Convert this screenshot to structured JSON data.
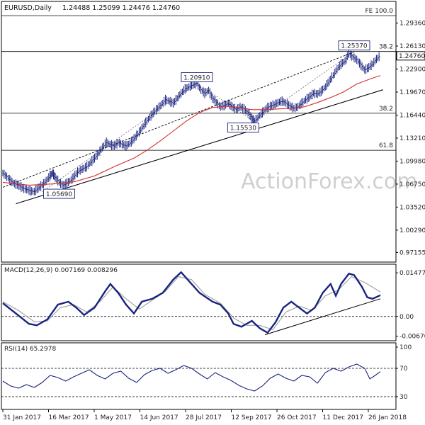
{
  "chart_data": {
    "type": "line",
    "header": {
      "symbol": "EURUSD,Daily",
      "ohlc": "1.24488 1.25099 1.24476 1.24760"
    },
    "watermark": "ActionForex.com",
    "x_tick_labels": [
      "31 Jan 2017",
      "16 Mar 2017",
      "1 May 2017",
      "14 Jun 2017",
      "28 Jul 2017",
      "12 Sep 2017",
      "26 Oct 2017",
      "11 Dec 2017",
      "26 Jan 2018"
    ],
    "price_panel": {
      "ylim": [
        0.96,
        1.322
      ],
      "y_tick_labels": [
        "1.29360",
        "1.26130",
        "1.22900",
        "1.19670",
        "1.16440",
        "1.13210",
        "1.09980",
        "1.06750",
        "1.03520",
        "1.00290",
        "0.97155"
      ],
      "last_price_label": "1.24760",
      "last_price": 1.2476,
      "price_series": [
        [
          0,
          1.083
        ],
        [
          3,
          1.078
        ],
        [
          6,
          1.072
        ],
        [
          9,
          1.068
        ],
        [
          12,
          1.066
        ],
        [
          15,
          1.062
        ],
        [
          18,
          1.06
        ],
        [
          21,
          1.058
        ],
        [
          24,
          1.057
        ],
        [
          27,
          1.062
        ],
        [
          30,
          1.066
        ],
        [
          33,
          1.072
        ],
        [
          36,
          1.079
        ],
        [
          38,
          1.083
        ],
        [
          40,
          1.077
        ],
        [
          43,
          1.07
        ],
        [
          46,
          1.066
        ],
        [
          49,
          1.069
        ],
        [
          52,
          1.073
        ],
        [
          55,
          1.08
        ],
        [
          58,
          1.086
        ],
        [
          61,
          1.089
        ],
        [
          64,
          1.092
        ],
        [
          67,
          1.098
        ],
        [
          70,
          1.104
        ],
        [
          73,
          1.111
        ],
        [
          76,
          1.119
        ],
        [
          79,
          1.126
        ],
        [
          82,
          1.123
        ],
        [
          85,
          1.121
        ],
        [
          88,
          1.126
        ],
        [
          91,
          1.123
        ],
        [
          94,
          1.121
        ],
        [
          97,
          1.125
        ],
        [
          100,
          1.131
        ],
        [
          103,
          1.138
        ],
        [
          106,
          1.146
        ],
        [
          109,
          1.154
        ],
        [
          112,
          1.161
        ],
        [
          115,
          1.168
        ],
        [
          118,
          1.174
        ],
        [
          121,
          1.179
        ],
        [
          124,
          1.186
        ],
        [
          127,
          1.184
        ],
        [
          130,
          1.181
        ],
        [
          133,
          1.188
        ],
        [
          136,
          1.195
        ],
        [
          139,
          1.201
        ],
        [
          142,
          1.204
        ],
        [
          145,
          1.207
        ],
        [
          148,
          1.209
        ],
        [
          151,
          1.2
        ],
        [
          154,
          1.195
        ],
        [
          157,
          1.199
        ],
        [
          160,
          1.188
        ],
        [
          163,
          1.182
        ],
        [
          166,
          1.176
        ],
        [
          169,
          1.178
        ],
        [
          172,
          1.181
        ],
        [
          175,
          1.176
        ],
        [
          178,
          1.172
        ],
        [
          181,
          1.176
        ],
        [
          184,
          1.173
        ],
        [
          187,
          1.168
        ],
        [
          190,
          1.16
        ],
        [
          192,
          1.156
        ],
        [
          195,
          1.162
        ],
        [
          198,
          1.168
        ],
        [
          201,
          1.174
        ],
        [
          204,
          1.177
        ],
        [
          207,
          1.179
        ],
        [
          210,
          1.182
        ],
        [
          213,
          1.184
        ],
        [
          216,
          1.181
        ],
        [
          219,
          1.177
        ],
        [
          222,
          1.174
        ],
        [
          225,
          1.176
        ],
        [
          228,
          1.181
        ],
        [
          231,
          1.186
        ],
        [
          234,
          1.19
        ],
        [
          237,
          1.195
        ],
        [
          240,
          1.194
        ],
        [
          243,
          1.198
        ],
        [
          246,
          1.204
        ],
        [
          249,
          1.212
        ],
        [
          252,
          1.22
        ],
        [
          255,
          1.229
        ],
        [
          258,
          1.236
        ],
        [
          261,
          1.24
        ],
        [
          264,
          1.251
        ],
        [
          267,
          1.246
        ],
        [
          270,
          1.242
        ],
        [
          273,
          1.235
        ],
        [
          276,
          1.228
        ],
        [
          279,
          1.231
        ],
        [
          282,
          1.236
        ],
        [
          285,
          1.243
        ],
        [
          288,
          1.248
        ]
      ],
      "sma_series": [
        [
          0,
          1.07
        ],
        [
          20,
          1.066
        ],
        [
          40,
          1.068
        ],
        [
          55,
          1.071
        ],
        [
          70,
          1.079
        ],
        [
          85,
          1.092
        ],
        [
          100,
          1.104
        ],
        [
          110,
          1.115
        ],
        [
          120,
          1.128
        ],
        [
          130,
          1.142
        ],
        [
          140,
          1.156
        ],
        [
          150,
          1.168
        ],
        [
          160,
          1.175
        ],
        [
          170,
          1.177
        ],
        [
          180,
          1.175
        ],
        [
          190,
          1.172
        ],
        [
          200,
          1.172
        ],
        [
          210,
          1.173
        ],
        [
          220,
          1.174
        ],
        [
          230,
          1.176
        ],
        [
          240,
          1.182
        ],
        [
          250,
          1.189
        ],
        [
          260,
          1.197
        ],
        [
          270,
          1.208
        ],
        [
          280,
          1.215
        ],
        [
          288,
          1.22
        ]
      ],
      "channel_lower": [
        [
          10,
          1.04
        ],
        [
          290,
          1.2
        ]
      ],
      "channel_upper_dashed": [
        [
          0,
          1.063
        ],
        [
          268,
          1.253
        ]
      ],
      "zigzag": [
        [
          30,
          1.0569
        ],
        [
          148,
          1.2091
        ],
        [
          192,
          1.1553
        ],
        [
          268,
          1.2537
        ]
      ],
      "horizontal_levels": [
        {
          "price": 1.304,
          "label": "FE 100.0"
        },
        {
          "price": 1.2537,
          "label": "38.2"
        },
        {
          "price": 1.167,
          "label": "38.2"
        },
        {
          "price": 1.115,
          "label": "61.8"
        }
      ],
      "annotations": [
        {
          "text": "1.05690",
          "x": 30,
          "price": 1.0569
        },
        {
          "text": "1.20910",
          "x": 148,
          "price": 1.2091
        },
        {
          "text": "1.15530",
          "x": 192,
          "price": 1.1553
        },
        {
          "text": "1.25370",
          "x": 268,
          "price": 1.2537
        }
      ]
    },
    "macd_panel": {
      "title": "MACD(12,26,9) 0.007169 0.008296",
      "ylim": [
        -0.0075,
        0.0165
      ],
      "y_tick_labels": [
        "0.014776",
        "0.00",
        "-0.006705"
      ],
      "macd_series": [
        [
          0,
          0.0045
        ],
        [
          10,
          0.001
        ],
        [
          20,
          -0.0025
        ],
        [
          26,
          -0.003
        ],
        [
          34,
          -0.001
        ],
        [
          42,
          0.004
        ],
        [
          50,
          0.005
        ],
        [
          56,
          0.003
        ],
        [
          62,
          0.0005
        ],
        [
          70,
          0.003
        ],
        [
          78,
          0.0085
        ],
        [
          82,
          0.011
        ],
        [
          88,
          0.008
        ],
        [
          94,
          0.004
        ],
        [
          100,
          0.001
        ],
        [
          106,
          0.005
        ],
        [
          114,
          0.006
        ],
        [
          122,
          0.008
        ],
        [
          130,
          0.0125
        ],
        [
          136,
          0.015
        ],
        [
          142,
          0.012
        ],
        [
          150,
          0.008
        ],
        [
          160,
          0.005
        ],
        [
          166,
          0.004
        ],
        [
          172,
          0.001
        ],
        [
          176,
          -0.0025
        ],
        [
          182,
          -0.0035
        ],
        [
          190,
          -0.0015
        ],
        [
          196,
          -0.004
        ],
        [
          202,
          -0.0055
        ],
        [
          208,
          -0.002
        ],
        [
          214,
          0.003
        ],
        [
          220,
          0.005
        ],
        [
          226,
          0.003
        ],
        [
          232,
          0.001
        ],
        [
          238,
          0.003
        ],
        [
          244,
          0.008
        ],
        [
          250,
          0.011
        ],
        [
          254,
          0.007
        ],
        [
          258,
          0.011
        ],
        [
          264,
          0.0145
        ],
        [
          268,
          0.014
        ],
        [
          274,
          0.01
        ],
        [
          278,
          0.0065
        ],
        [
          282,
          0.006
        ],
        [
          288,
          0.0072
        ]
      ],
      "signal_series": [
        [
          0,
          0.005
        ],
        [
          12,
          0.002
        ],
        [
          24,
          -0.0018
        ],
        [
          34,
          -0.0015
        ],
        [
          44,
          0.003
        ],
        [
          54,
          0.004
        ],
        [
          64,
          0.0015
        ],
        [
          74,
          0.005
        ],
        [
          84,
          0.01
        ],
        [
          94,
          0.006
        ],
        [
          104,
          0.0025
        ],
        [
          114,
          0.0055
        ],
        [
          124,
          0.0085
        ],
        [
          134,
          0.0135
        ],
        [
          144,
          0.0125
        ],
        [
          154,
          0.0075
        ],
        [
          166,
          0.0045
        ],
        [
          176,
          -0.0005
        ],
        [
          186,
          -0.003
        ],
        [
          196,
          -0.003
        ],
        [
          206,
          -0.0045
        ],
        [
          216,
          0.0015
        ],
        [
          226,
          0.0035
        ],
        [
          236,
          0.002
        ],
        [
          246,
          0.007
        ],
        [
          256,
          0.009
        ],
        [
          266,
          0.0135
        ],
        [
          276,
          0.0115
        ],
        [
          288,
          0.0083
        ]
      ],
      "trendline": [
        [
          200,
          -0.0062
        ],
        [
          288,
          0.006
        ]
      ]
    },
    "rsi_panel": {
      "title": "RSI(14) 65.2978",
      "ylim": [
        15,
        100
      ],
      "y_tick_labels": [
        "100",
        "70",
        "30",
        "0"
      ],
      "levels": [
        70,
        30
      ],
      "rsi_series": [
        [
          0,
          52
        ],
        [
          6,
          45
        ],
        [
          12,
          42
        ],
        [
          18,
          47
        ],
        [
          24,
          43
        ],
        [
          30,
          50
        ],
        [
          36,
          60
        ],
        [
          42,
          57
        ],
        [
          48,
          52
        ],
        [
          54,
          58
        ],
        [
          60,
          63
        ],
        [
          66,
          68
        ],
        [
          72,
          60
        ],
        [
          78,
          55
        ],
        [
          84,
          63
        ],
        [
          90,
          66
        ],
        [
          96,
          56
        ],
        [
          102,
          50
        ],
        [
          108,
          61
        ],
        [
          114,
          67
        ],
        [
          120,
          70
        ],
        [
          126,
          63
        ],
        [
          132,
          68
        ],
        [
          138,
          74
        ],
        [
          144,
          70
        ],
        [
          150,
          62
        ],
        [
          156,
          55
        ],
        [
          162,
          64
        ],
        [
          168,
          58
        ],
        [
          174,
          53
        ],
        [
          180,
          46
        ],
        [
          186,
          41
        ],
        [
          192,
          38
        ],
        [
          198,
          45
        ],
        [
          204,
          56
        ],
        [
          210,
          62
        ],
        [
          216,
          56
        ],
        [
          222,
          52
        ],
        [
          228,
          60
        ],
        [
          234,
          58
        ],
        [
          240,
          49
        ],
        [
          246,
          64
        ],
        [
          252,
          70
        ],
        [
          258,
          66
        ],
        [
          264,
          72
        ],
        [
          270,
          76
        ],
        [
          276,
          70
        ],
        [
          280,
          55
        ],
        [
          284,
          60
        ],
        [
          288,
          65.3
        ]
      ]
    },
    "colors": {
      "price": "#1a237e",
      "sma": "#d32f2f",
      "trendline": "#000000",
      "macd": "#1a237e",
      "signal": "#9e9e9e",
      "rsi": "#1a237e",
      "grid": "#000000",
      "watermark": "#cfcfcf"
    }
  }
}
